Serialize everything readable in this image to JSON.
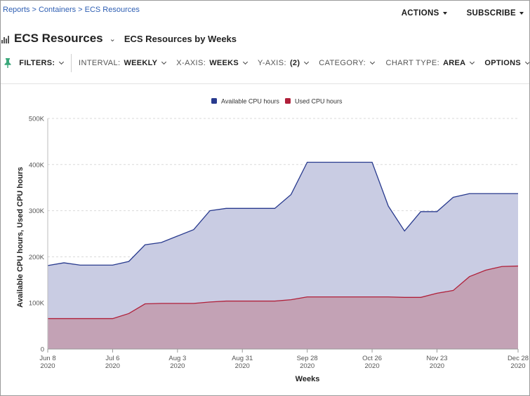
{
  "breadcrumb": {
    "items": [
      "Reports",
      "Containers",
      "ECS Resources"
    ],
    "separator": ">"
  },
  "actions": {
    "actions_label": "ACTIONS",
    "subscribe_label": "SUBSCRIBE"
  },
  "header": {
    "title": "ECS Resources",
    "subtitle": "ECS Resources by Weeks"
  },
  "filters": {
    "filters_label": "FILTERS:",
    "interval_label": "INTERVAL:",
    "interval_value": "WEEKLY",
    "xaxis_label": "X-AXIS:",
    "xaxis_value": "WEEKS",
    "yaxis_label": "Y-AXIS:",
    "yaxis_value": "(2)",
    "category_label": "CATEGORY:",
    "chart_type_label": "CHART TYPE:",
    "chart_type_value": "AREA",
    "options_label": "OPTIONS"
  },
  "colors": {
    "available": "#283a8e",
    "available_fill": "#c9cce3",
    "used": "#b0203a",
    "used_fill": "#c3a2b5",
    "link": "#2f5fb3"
  },
  "chart_data": {
    "type": "area",
    "xlabel": "Weeks",
    "ylabel": "Available CPU hours, Used CPU hours",
    "ylim": [
      0,
      500000
    ],
    "yticks": [
      "0",
      "100K",
      "200K",
      "300K",
      "400K",
      "500K"
    ],
    "x": [
      "2020-06-08",
      "2020-06-15",
      "2020-06-22",
      "2020-06-29",
      "2020-07-06",
      "2020-07-13",
      "2020-07-20",
      "2020-07-27",
      "2020-08-03",
      "2020-08-10",
      "2020-08-17",
      "2020-08-24",
      "2020-08-31",
      "2020-09-07",
      "2020-09-14",
      "2020-09-21",
      "2020-09-28",
      "2020-10-05",
      "2020-10-12",
      "2020-10-19",
      "2020-10-26",
      "2020-11-02",
      "2020-11-09",
      "2020-11-16",
      "2020-11-23",
      "2020-11-30",
      "2020-12-07",
      "2020-12-14",
      "2020-12-21",
      "2020-12-28"
    ],
    "xticks": [
      {
        "date": "2020-06-08",
        "line1": "Jun 8",
        "line2": "2020"
      },
      {
        "date": "2020-07-06",
        "line1": "Jul 6",
        "line2": "2020"
      },
      {
        "date": "2020-08-03",
        "line1": "Aug 3",
        "line2": "2020"
      },
      {
        "date": "2020-08-31",
        "line1": "Aug 31",
        "line2": "2020"
      },
      {
        "date": "2020-09-28",
        "line1": "Sep 28",
        "line2": "2020"
      },
      {
        "date": "2020-10-26",
        "line1": "Oct 26",
        "line2": "2020"
      },
      {
        "date": "2020-11-23",
        "line1": "Nov 23",
        "line2": "2020"
      },
      {
        "date": "2020-12-28",
        "line1": "Dec 28",
        "line2": "2020"
      }
    ],
    "legend": "top-center",
    "grid": true,
    "series": [
      {
        "name": "Available CPU hours",
        "values": [
          181000,
          187000,
          182000,
          182000,
          182000,
          190000,
          226000,
          231000,
          245000,
          259000,
          300000,
          305000,
          305000,
          305000,
          305000,
          335000,
          405000,
          405000,
          405000,
          405000,
          405000,
          310000,
          256000,
          298000,
          298000,
          329000,
          337000,
          337000,
          337000,
          337000
        ]
      },
      {
        "name": "Used CPU hours",
        "values": [
          66000,
          66000,
          66000,
          66000,
          66000,
          77000,
          98000,
          99000,
          99000,
          99000,
          102000,
          104000,
          104000,
          104000,
          104000,
          107000,
          113000,
          113000,
          113000,
          113000,
          113000,
          113000,
          112000,
          112000,
          121000,
          127000,
          157000,
          171000,
          179000,
          180000
        ]
      }
    ]
  }
}
